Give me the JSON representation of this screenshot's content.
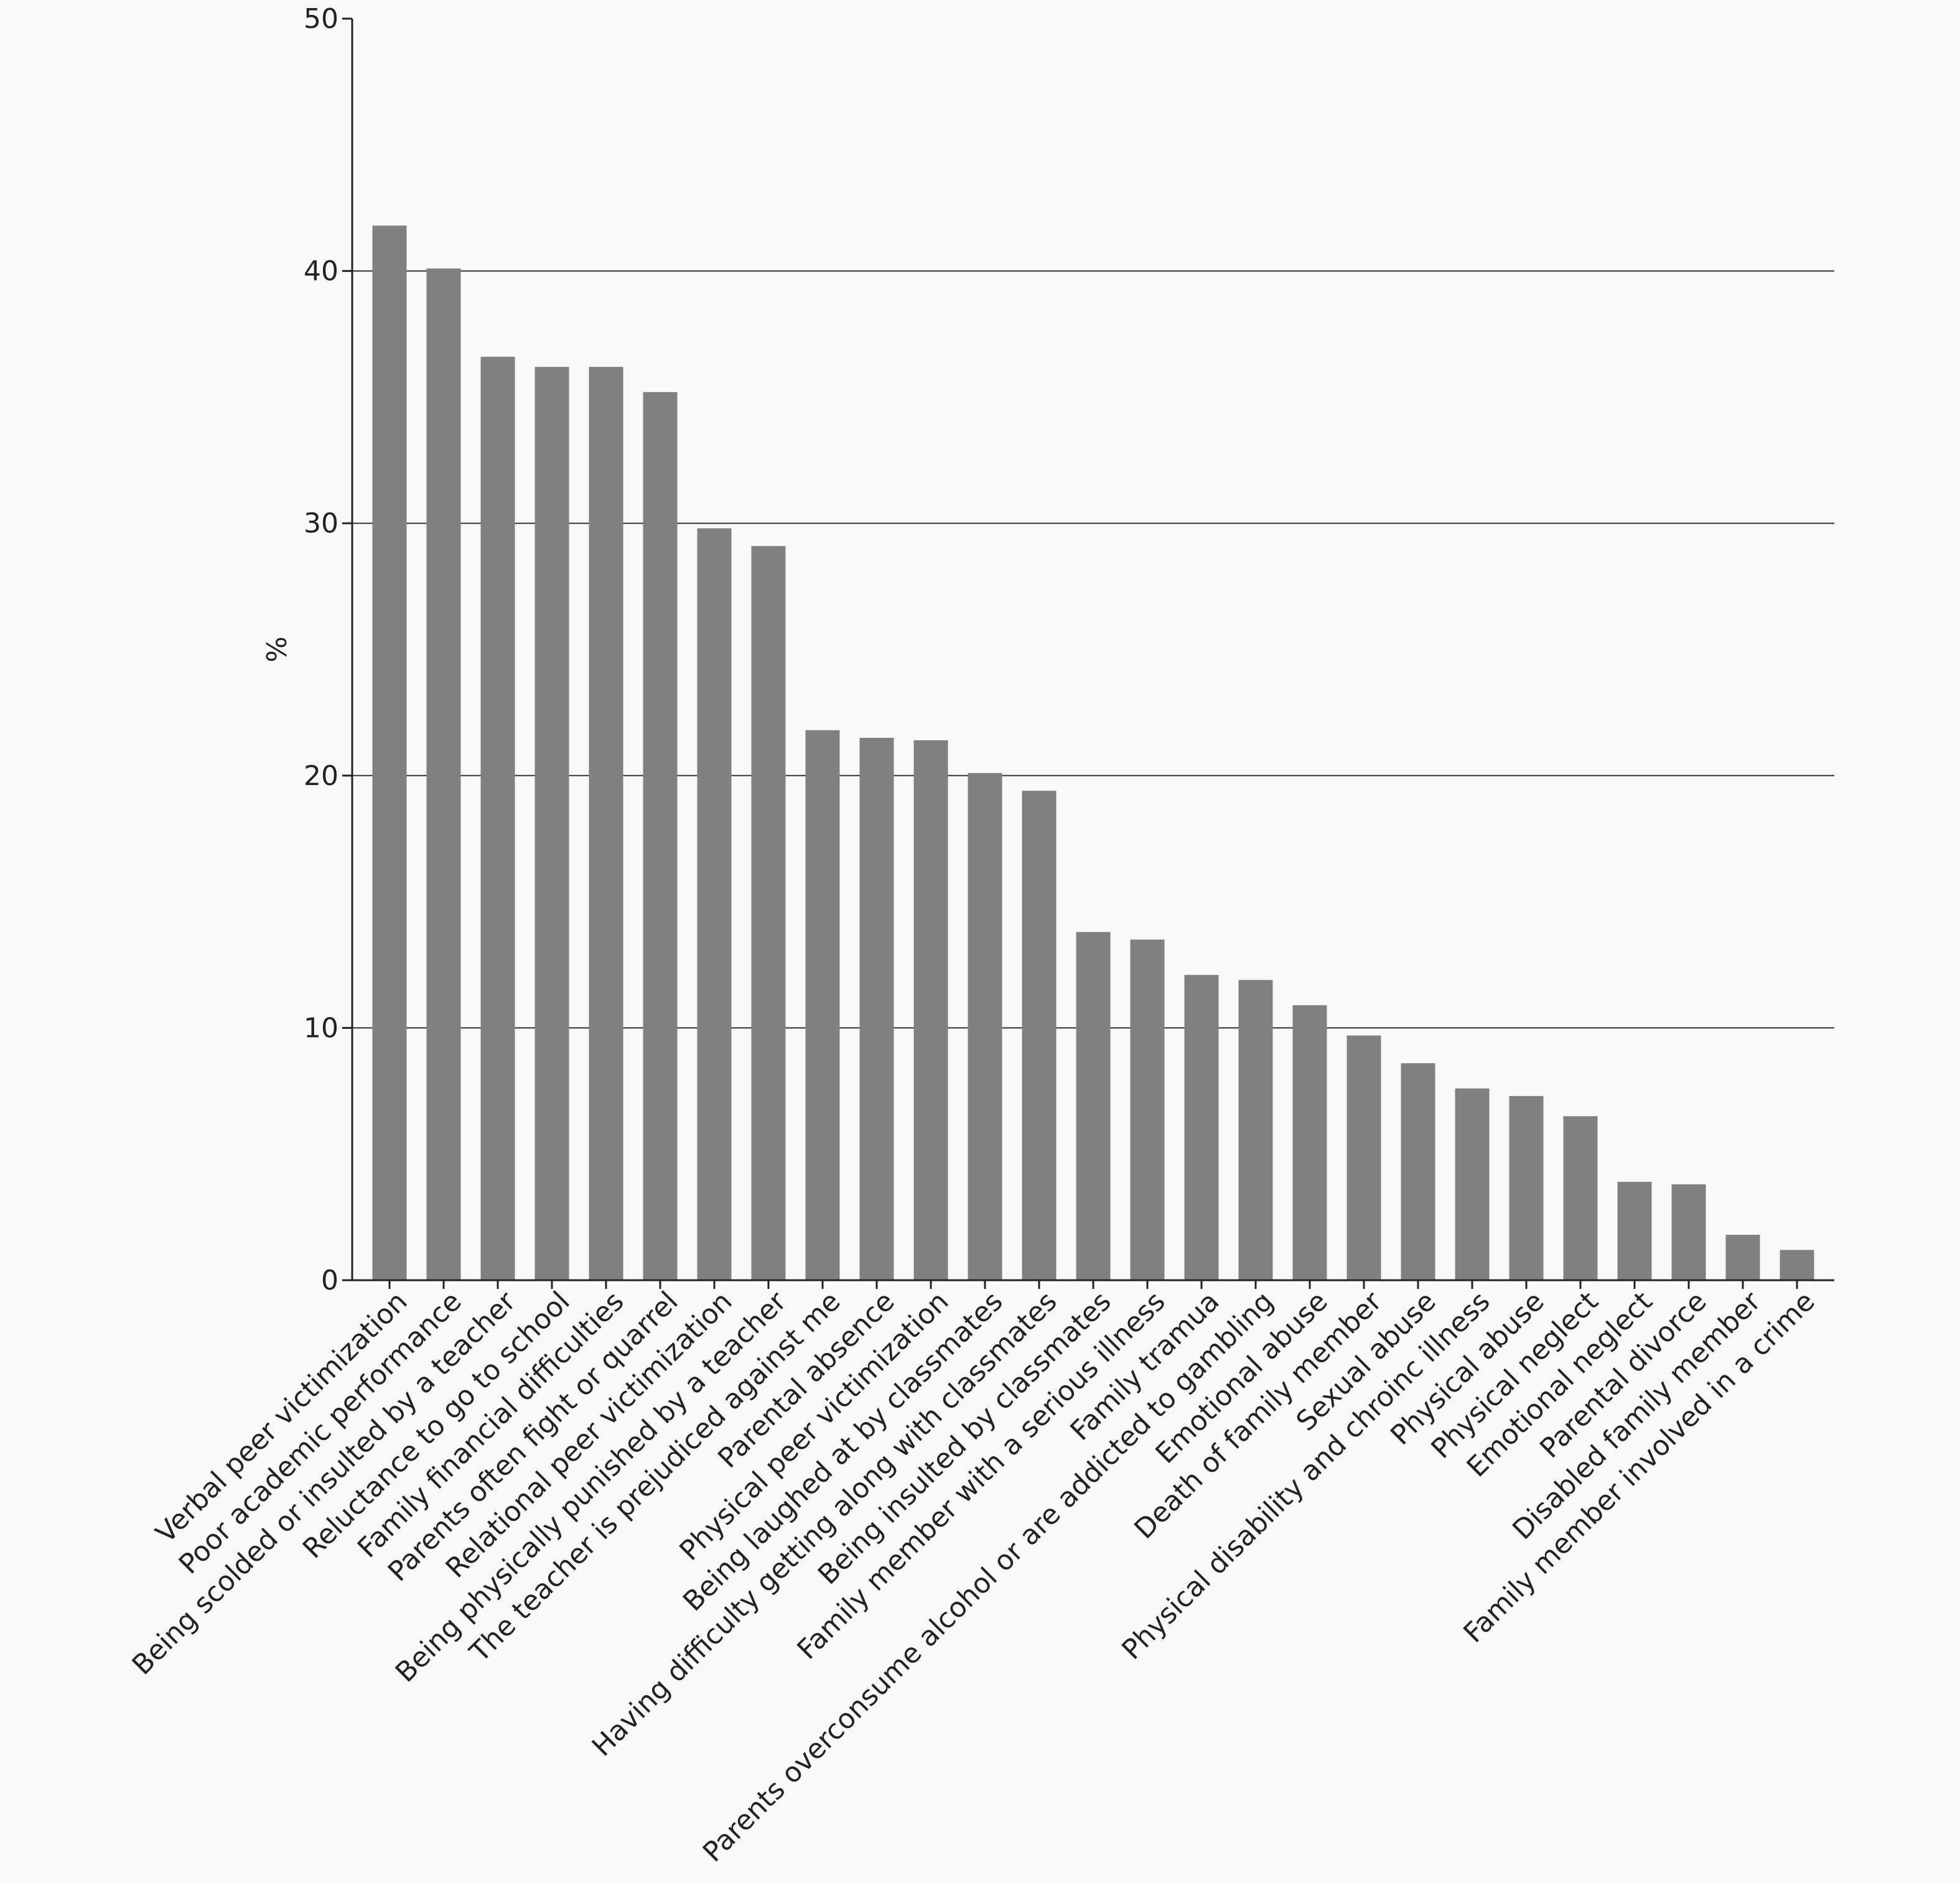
{
  "chart_data": {
    "type": "bar",
    "title": "",
    "xlabel": "",
    "ylabel": "%",
    "ylim": [
      0,
      50
    ],
    "yticks": [
      0,
      10,
      20,
      30,
      40,
      50
    ],
    "grid": "horizontal at 10, 20, 30, 40",
    "bar_color": "#808080",
    "categories": [
      "Verbal peer victimization",
      "Poor academic performance",
      "Being scolded or insulted by a teacher",
      "Reluctance to go to school",
      "Family financial difficulties",
      "Parents often fight or quarrel",
      "Relational peer victimization",
      "Being physically punished by a teacher",
      "The teacher is prejudiced against me",
      "Parental absence",
      "Physical peer victimization",
      "Being laughed at by classmates",
      "Having difficulty getting along with classmates",
      "Being insulted by classmates",
      "Family member with a serious illness",
      "Family tramua",
      "Parents overconsume alcohol or are addicted to gambling",
      "Emotional abuse",
      "Death of family member",
      "Sexual abuse",
      "Physical disability and chroinc illness",
      "Physical abuse",
      "Physical neglect",
      "Emotional neglect",
      "Parental divorce",
      "Disabled family member",
      "Family member involved in a crime"
    ],
    "values": [
      41.8,
      40.1,
      36.6,
      36.2,
      36.2,
      35.2,
      29.8,
      29.1,
      21.8,
      21.5,
      21.4,
      20.1,
      19.4,
      13.8,
      13.5,
      12.1,
      11.9,
      10.9,
      9.7,
      8.6,
      7.6,
      7.3,
      6.5,
      3.9,
      3.8,
      1.8,
      1.2
    ]
  }
}
